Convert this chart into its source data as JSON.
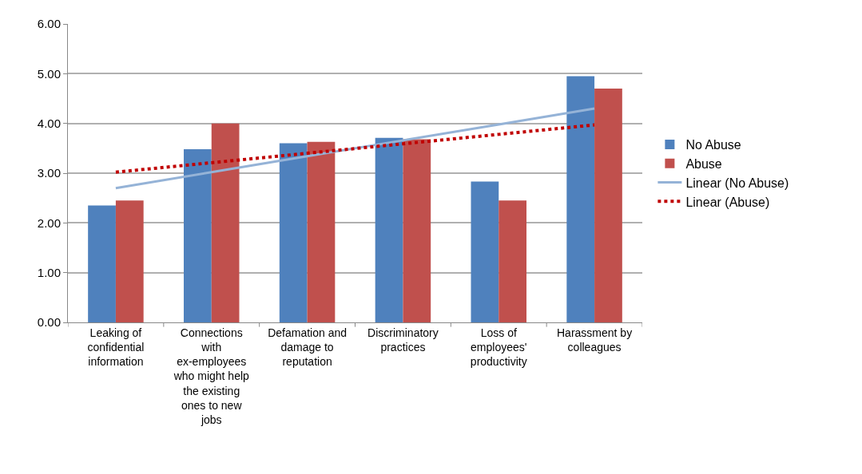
{
  "chart_data": {
    "type": "bar",
    "categories": [
      "Leaking of confidential information",
      "Connections with ex-employees who might help the existing ones to new jobs",
      "Defamation and damage to reputation",
      "Discriminatory practices",
      "Loss of employees' productivity",
      "Harassment by colleagues"
    ],
    "series": [
      {
        "name": "No Abuse",
        "color": "#4f81bd",
        "values": [
          2.35,
          3.48,
          3.6,
          3.71,
          2.83,
          4.95
        ]
      },
      {
        "name": "Abuse",
        "color": "#c0504d",
        "values": [
          2.45,
          4.0,
          3.63,
          3.68,
          2.45,
          4.7
        ]
      },
      {
        "name": "Linear (No Abuse)",
        "type": "line",
        "color": "#95b3d7",
        "line_style": "solid",
        "values": [
          2.7,
          3.02,
          3.34,
          3.66,
          3.98,
          4.3
        ]
      },
      {
        "name": "Linear (Abuse)",
        "type": "line",
        "color": "#c00000",
        "line_style": "dotted",
        "values": [
          3.02,
          3.21,
          3.4,
          3.59,
          3.78,
          3.97
        ]
      }
    ],
    "ylim": [
      0,
      6
    ],
    "yticks": [
      {
        "value": 0,
        "label": "0.00"
      },
      {
        "value": 1,
        "label": "1.00"
      },
      {
        "value": 2,
        "label": "2.00"
      },
      {
        "value": 3,
        "label": "3.00"
      },
      {
        "value": 4,
        "label": "4.00"
      },
      {
        "value": 5,
        "label": "5.00"
      },
      {
        "value": 6,
        "label": "6.00"
      }
    ],
    "grid": "y",
    "legend": "right"
  }
}
